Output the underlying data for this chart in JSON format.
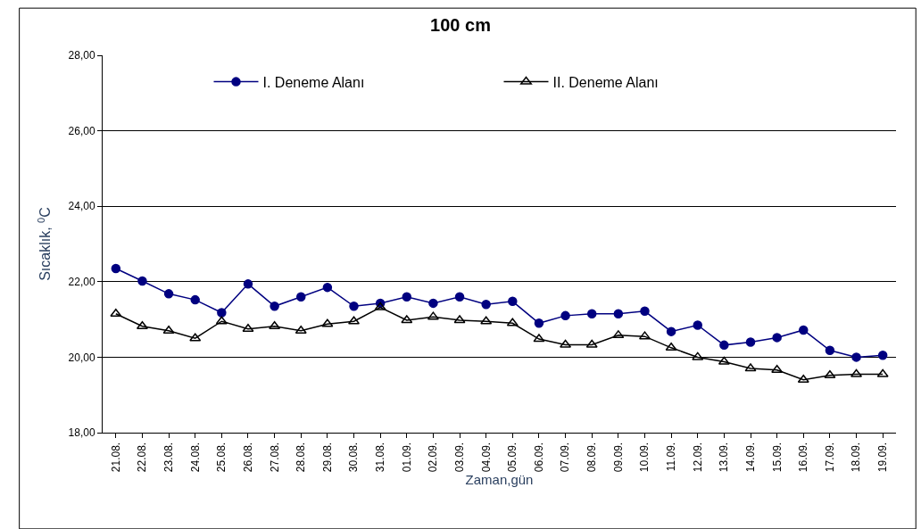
{
  "chart_data": {
    "type": "line",
    "title": "100 cm",
    "xlabel": "Zaman,gün",
    "ylabel": "Sıcaklık, $^{0}$C",
    "categories": [
      "21.08.",
      "22.08.",
      "23.08.",
      "24.08.",
      "25.08.",
      "26.08.",
      "27.08.",
      "28.08.",
      "29.08.",
      "30.08.",
      "31.08.",
      "01.09.",
      "02.09.",
      "03.09.",
      "04.09.",
      "05.09.",
      "06.09.",
      "07.09.",
      "08.09.",
      "09.09.",
      "10.09.",
      "11.09.",
      "12.09.",
      "13.09.",
      "14.09.",
      "15.09.",
      "16.09.",
      "17.09.",
      "18.09.",
      "19.09."
    ],
    "series": [
      {
        "name": "I. Deneme Alanı",
        "color": "#000080",
        "marker": "circle",
        "values": [
          22.35,
          22.02,
          21.68,
          21.52,
          21.18,
          21.94,
          21.35,
          21.6,
          21.85,
          21.35,
          21.43,
          21.6,
          21.43,
          21.6,
          21.4,
          21.48,
          20.9,
          21.1,
          21.15,
          21.15,
          21.22,
          20.68,
          20.85,
          20.32,
          20.4,
          20.52,
          20.72,
          20.18,
          20.0,
          20.05
        ]
      },
      {
        "name": "II. Deneme Alanı",
        "color": "#000000",
        "marker": "triangle",
        "values": [
          21.15,
          20.82,
          20.7,
          20.5,
          20.95,
          20.75,
          20.82,
          20.7,
          20.88,
          20.95,
          21.32,
          20.98,
          21.07,
          20.98,
          20.95,
          20.9,
          20.48,
          20.33,
          20.33,
          20.58,
          20.55,
          20.25,
          20.0,
          19.88,
          19.7,
          19.66,
          19.4,
          19.52,
          19.55,
          19.55
        ]
      }
    ],
    "ylim": [
      18,
      28
    ],
    "yticks": [
      {
        "value": 18,
        "label": "18,00"
      },
      {
        "value": 20,
        "label": "20,00"
      },
      {
        "value": 22,
        "label": "22,00"
      },
      {
        "value": 24,
        "label": "24,00"
      },
      {
        "value": 26,
        "label": "26,00"
      },
      {
        "value": 28,
        "label": "28,00"
      }
    ],
    "grid": "y",
    "legend": "top",
    "line_style": "solid"
  }
}
